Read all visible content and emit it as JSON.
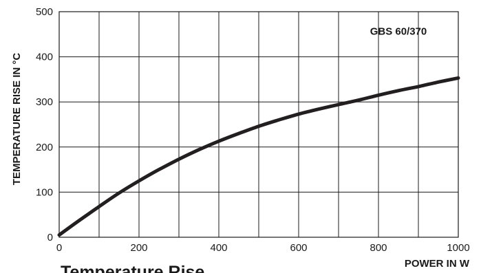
{
  "chart_data": {
    "type": "line",
    "title": "Temperature Rise",
    "annotation": "GBS 60/370",
    "xlabel": "POWER IN W",
    "ylabel": "TEMPERATURE RISE IN °C",
    "xlim": [
      0,
      1000
    ],
    "ylim": [
      0,
      500
    ],
    "xticks": [
      0,
      200,
      400,
      600,
      800,
      1000
    ],
    "xtick_labels": [
      "0",
      "200",
      "400",
      "600",
      "800",
      "1000"
    ],
    "yticks": [
      0,
      100,
      200,
      300,
      400,
      500
    ],
    "ytick_labels": [
      "0",
      "100",
      "200",
      "300",
      "400",
      "500"
    ],
    "x_gridlines": [
      100,
      200,
      300,
      400,
      500,
      600,
      700,
      800,
      900
    ],
    "y_gridlines": [
      100,
      200,
      300,
      400
    ],
    "grid": true,
    "series": [
      {
        "x": [
          0,
          50,
          100,
          150,
          200,
          250,
          300,
          350,
          400,
          450,
          500,
          550,
          600,
          650,
          700,
          750,
          800,
          850,
          900,
          950,
          1000
        ],
        "y": [
          5,
          37,
          68,
          98,
          125,
          150,
          173,
          194,
          213,
          230,
          246,
          260,
          273,
          284,
          294,
          304,
          315,
          325,
          334,
          344,
          353
        ]
      }
    ]
  }
}
